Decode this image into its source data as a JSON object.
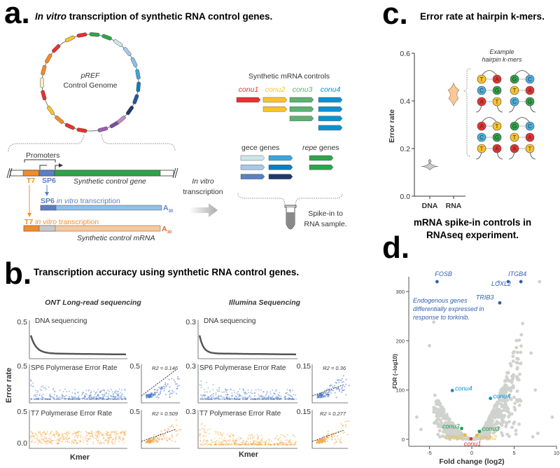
{
  "panel_a": {
    "letter": "a.",
    "title_italic": "In vitro",
    "title_rest": " transcription of synthetic RNA control genes.",
    "genome_line1": "pREF",
    "genome_line2": "Control Genome",
    "promoters": "Promoters",
    "t7": "T7",
    "sp6": "SP6",
    "gene_label": "Synthetic control gene",
    "sp6_tx": "in vitro",
    "tx_word": "transcription",
    "a30": "A",
    "a30_sub": "30",
    "mrna_label": "Synthetic control mRNA",
    "ivt_line1": "In vitro",
    "ivt_line2": "transcription",
    "controls_title": "Synthetic mRNA controls",
    "conu": [
      "conu1",
      "conu2",
      "conu3",
      "conu4"
    ],
    "gece_italic": "gece",
    "repe_italic": "repe",
    "genes_word": " genes",
    "spike_line1": "Spike-in to",
    "spike_line2": "RNA sample.",
    "colors": {
      "conu1": "#e8312f",
      "conu2": "#f9c32c",
      "conu3": "#5bb272",
      "conu4": "#0e90d2",
      "t7": "#f28c28",
      "sp6": "#5b7fc4",
      "gene": "#2ea44a"
    }
  },
  "panel_b": {
    "letter": "b.",
    "title": "Transcription accuracy using synthetic RNA control genes.",
    "ont": "ONT Long-read sequencing",
    "illumina": "Illumina Sequencing",
    "dna": "DNA sequencing",
    "sp6": "SP6 Polymerase Error Rate",
    "t7": "T7 Polymerase Error Rate",
    "ylabel": "Error rate",
    "xlabel": "Kmer"
  },
  "panel_c": {
    "letter": "c.",
    "title": "Error rate at hairpin k-mers.",
    "example1": "Example",
    "example2": "hairpin k-mers"
  },
  "panel_d": {
    "letter": "d.",
    "title1": "mRNA spike-in controls in",
    "title2": "RNAseq experiment.",
    "annotation": [
      "Endogenous genes",
      "differentially expressed in",
      "response to torkinib."
    ]
  },
  "chart_data": [
    {
      "type": "line",
      "panel": "b-ONT-DNA",
      "title": "DNA sequencing",
      "ylabel": "Error rate",
      "xlabel": "Kmer",
      "ylim": [
        0,
        0.5
      ],
      "yticks": [
        "0.5"
      ],
      "trend": "sorted decreasing"
    },
    {
      "type": "scatter",
      "panel": "b-ONT-SP6",
      "title": "SP6 Polymerase Error Rate",
      "ylim": [
        0,
        0.5
      ],
      "yticks": [
        "0.5"
      ],
      "inset": {
        "yticks": [
          "0.5"
        ],
        "r2_label": "R2 = 0.146",
        "r2": 0.146
      }
    },
    {
      "type": "scatter",
      "panel": "b-ONT-T7",
      "title": "T7 Polymerase Error Rate",
      "ylim": [
        0,
        0.5
      ],
      "yticks": [
        "0.5",
        "0.0"
      ],
      "inset": {
        "yticks": [
          "0.5"
        ],
        "r2_label": "R2 = 0.509",
        "r2": 0.509
      }
    },
    {
      "type": "line",
      "panel": "b-Illumina-DNA",
      "title": "DNA sequencing",
      "ylim": [
        0,
        0.3
      ],
      "yticks": [
        "0.3"
      ]
    },
    {
      "type": "scatter",
      "panel": "b-Illumina-SP6",
      "title": "SP6 Polymerase Error Rate",
      "ylim": [
        0,
        0.3
      ],
      "yticks": [
        "0.3"
      ],
      "inset": {
        "yticks": [
          "0.15"
        ],
        "r2_label": "R2 = 0.36",
        "r2": 0.36
      }
    },
    {
      "type": "scatter",
      "panel": "b-Illumina-T7",
      "title": "T7 Polymerase Error Rate",
      "ylim": [
        0,
        0.3
      ],
      "yticks": [
        "0.3"
      ],
      "inset": {
        "yticks": [
          "0.15"
        ],
        "r2_label": "R2 = 0.277",
        "r2": 0.277
      }
    },
    {
      "type": "violin",
      "panel": "c",
      "ylabel": "Error rate",
      "ylim": [
        0,
        0.6
      ],
      "yticks": [
        "0.0",
        "0.2",
        "0.4",
        "0.6"
      ],
      "categories": [
        "DNA",
        "RNA"
      ],
      "series": [
        {
          "name": "DNA",
          "median": 0.125,
          "min": 0.11,
          "max": 0.155,
          "color": "#cccccc"
        },
        {
          "name": "RNA",
          "median": 0.43,
          "min": 0.38,
          "max": 0.475,
          "color": "#f9c89a"
        }
      ],
      "hairpins": [
        [
          [
            "T",
            "A"
          ],
          [
            "C",
            "G"
          ],
          [
            "A",
            "T"
          ]
        ],
        [
          [
            "G",
            "C"
          ],
          [
            "T",
            "A"
          ],
          [
            "C",
            "G"
          ]
        ],
        [
          [
            "A",
            "T"
          ],
          [
            "C",
            "G"
          ],
          [
            "T",
            "A"
          ]
        ],
        [
          [
            "G",
            "C"
          ],
          [
            "T",
            "A"
          ],
          [
            "A",
            "T"
          ]
        ]
      ]
    },
    {
      "type": "scatter",
      "panel": "d",
      "xlabel": "Fold change (log2)",
      "ylabel": "FDR (−log10)",
      "xlim": [
        -7.5,
        10
      ],
      "ylim": [
        -15,
        330
      ],
      "xticks": [
        "-5",
        "0",
        "5",
        "10"
      ],
      "yticks": [
        "0",
        "100",
        "200",
        "300"
      ],
      "labeled_points": [
        {
          "label": "FOSB",
          "x": -4.1,
          "y": 320,
          "color": "#2f5fb3"
        },
        {
          "label": "ITGB4",
          "x": 5.8,
          "y": 320,
          "color": "#2f5fb3"
        },
        {
          "label": "LOXL2",
          "x": 4.3,
          "y": 320,
          "color": "#2f5fb3"
        },
        {
          "label": "TRIB3",
          "x": 3.3,
          "y": 277,
          "color": "#2f5fb3"
        },
        {
          "label": "conu4",
          "x": -2.3,
          "y": 99,
          "color": "#0e90d2"
        },
        {
          "label": "conu4",
          "x": 2.2,
          "y": 83,
          "color": "#0e90d2"
        },
        {
          "label": "conu3",
          "x": -1.2,
          "y": 22,
          "color": "#1a9e4a"
        },
        {
          "label": "conu3",
          "x": 0.9,
          "y": 16,
          "color": "#1a9e4a"
        },
        {
          "label": "conu2",
          "x": -0.8,
          "y": 9,
          "color": "#f9b52c"
        },
        {
          "label": "conu2",
          "x": 0.6,
          "y": 8,
          "color": "#f9b52c"
        },
        {
          "label": "conu1",
          "x": -0.1,
          "y": 1,
          "color": "#e8312f"
        }
      ]
    }
  ]
}
